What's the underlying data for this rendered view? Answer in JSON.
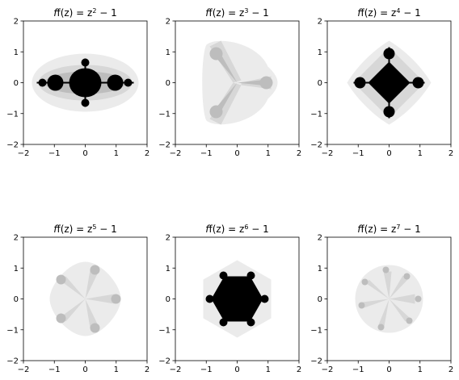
{
  "figure": {
    "panels": [
      {
        "id": "p2",
        "title": {
          "pre": "f(z) = z",
          "exp": "2",
          "post": " − 1"
        },
        "degree": 2
      },
      {
        "id": "p3",
        "title": {
          "pre": "f(z) = z",
          "exp": "3",
          "post": " − 1"
        },
        "degree": 3
      },
      {
        "id": "p4",
        "title": {
          "pre": "f(z) = z",
          "exp": "4",
          "post": " − 1"
        },
        "degree": 4
      },
      {
        "id": "p5",
        "title": {
          "pre": "f(z) = z",
          "exp": "5",
          "post": " − 1"
        },
        "degree": 5
      },
      {
        "id": "p6",
        "title": {
          "pre": "f(z) = z",
          "exp": "6",
          "post": " − 1"
        },
        "degree": 6
      },
      {
        "id": "p7",
        "title": {
          "pre": "f(z) = z",
          "exp": "7",
          "post": " − 1"
        },
        "degree": 7
      }
    ],
    "axes": {
      "xticks": [
        "−2",
        "−1",
        "0",
        "1",
        "2"
      ],
      "yticks": [
        "−2",
        "−1",
        "0",
        "1",
        "2"
      ],
      "xlim": [
        -2,
        2
      ],
      "ylim": [
        -2,
        2
      ]
    },
    "colors": {
      "outer": "#ebebeb",
      "middle": "#d7d7d7",
      "inner": "#bdbdbd",
      "set": "#000000"
    }
  }
}
